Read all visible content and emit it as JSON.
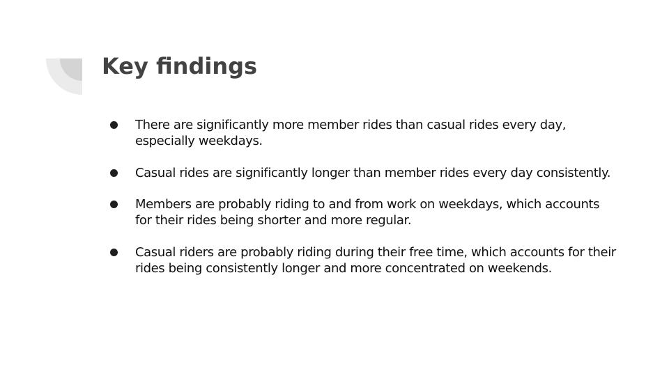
{
  "slide": {
    "title": "Key findings",
    "bullets": [
      "There are significantly more member rides than casual rides every day, especially weekdays.",
      "Casual rides are significantly longer than member rides every day consistently.",
      "Members are probably riding to and from work on weekdays, which accounts for their rides being shorter and more regular.",
      "Casual riders are probably riding during their free time, which accounts for their rides being consistently longer and more concentrated on weekends."
    ],
    "bullet_icon": "filled-circle-bullet-icon",
    "decoration_icon": "quarter-circle-corner-icon"
  },
  "colors": {
    "background": "#ffffff",
    "title": "#434343",
    "body_text": "#111111",
    "decoration_outer": "#ebebeb",
    "decoration_inner": "#d4d4d4"
  }
}
